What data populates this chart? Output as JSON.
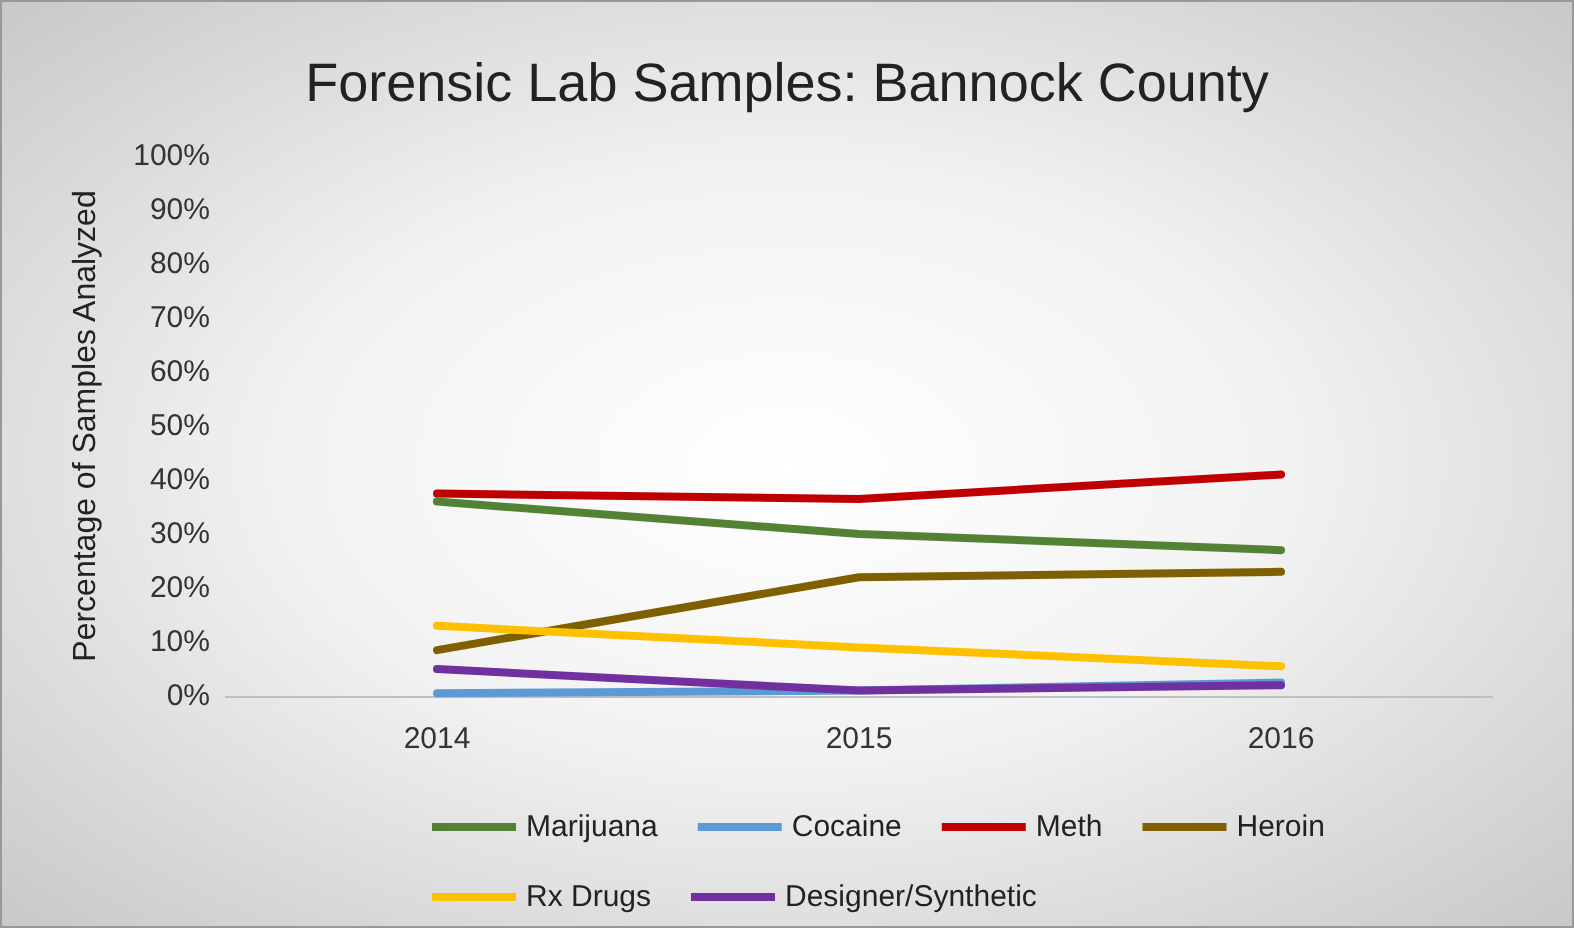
{
  "chart_data": {
    "type": "line",
    "title": "Forensic Lab Samples: Bannock County",
    "ylabel": "Percentage of Samples Analyzed",
    "categories": [
      "2014",
      "2015",
      "2016"
    ],
    "series": [
      {
        "name": "Marijuana",
        "color": "#548235",
        "values": [
          36,
          30,
          27
        ]
      },
      {
        "name": "Cocaine",
        "color": "#5b9bd5",
        "values": [
          0.5,
          1,
          2.5
        ]
      },
      {
        "name": "Meth",
        "color": "#c00000",
        "values": [
          37.5,
          36.5,
          41
        ]
      },
      {
        "name": "Heroin",
        "color": "#7f6000",
        "values": [
          8.5,
          22,
          23
        ]
      },
      {
        "name": "Rx Drugs",
        "color": "#ffc000",
        "values": [
          13,
          9,
          5.5
        ]
      },
      {
        "name": "Designer/Synthetic",
        "color": "#7030a0",
        "values": [
          5,
          1,
          2
        ]
      }
    ],
    "ylim": [
      0,
      100
    ],
    "yticks": [
      {
        "value": 0,
        "label": "0%"
      },
      {
        "value": 10,
        "label": "10%"
      },
      {
        "value": 20,
        "label": "20%"
      },
      {
        "value": 30,
        "label": "30%"
      },
      {
        "value": 40,
        "label": "40%"
      },
      {
        "value": 50,
        "label": "50%"
      },
      {
        "value": 60,
        "label": "60%"
      },
      {
        "value": 70,
        "label": "70%"
      },
      {
        "value": 80,
        "label": "80%"
      },
      {
        "value": 90,
        "label": "90%"
      },
      {
        "value": 100,
        "label": "100%"
      }
    ],
    "grid": false,
    "legend": "bottom",
    "marker": "none",
    "line_style": "solid"
  }
}
